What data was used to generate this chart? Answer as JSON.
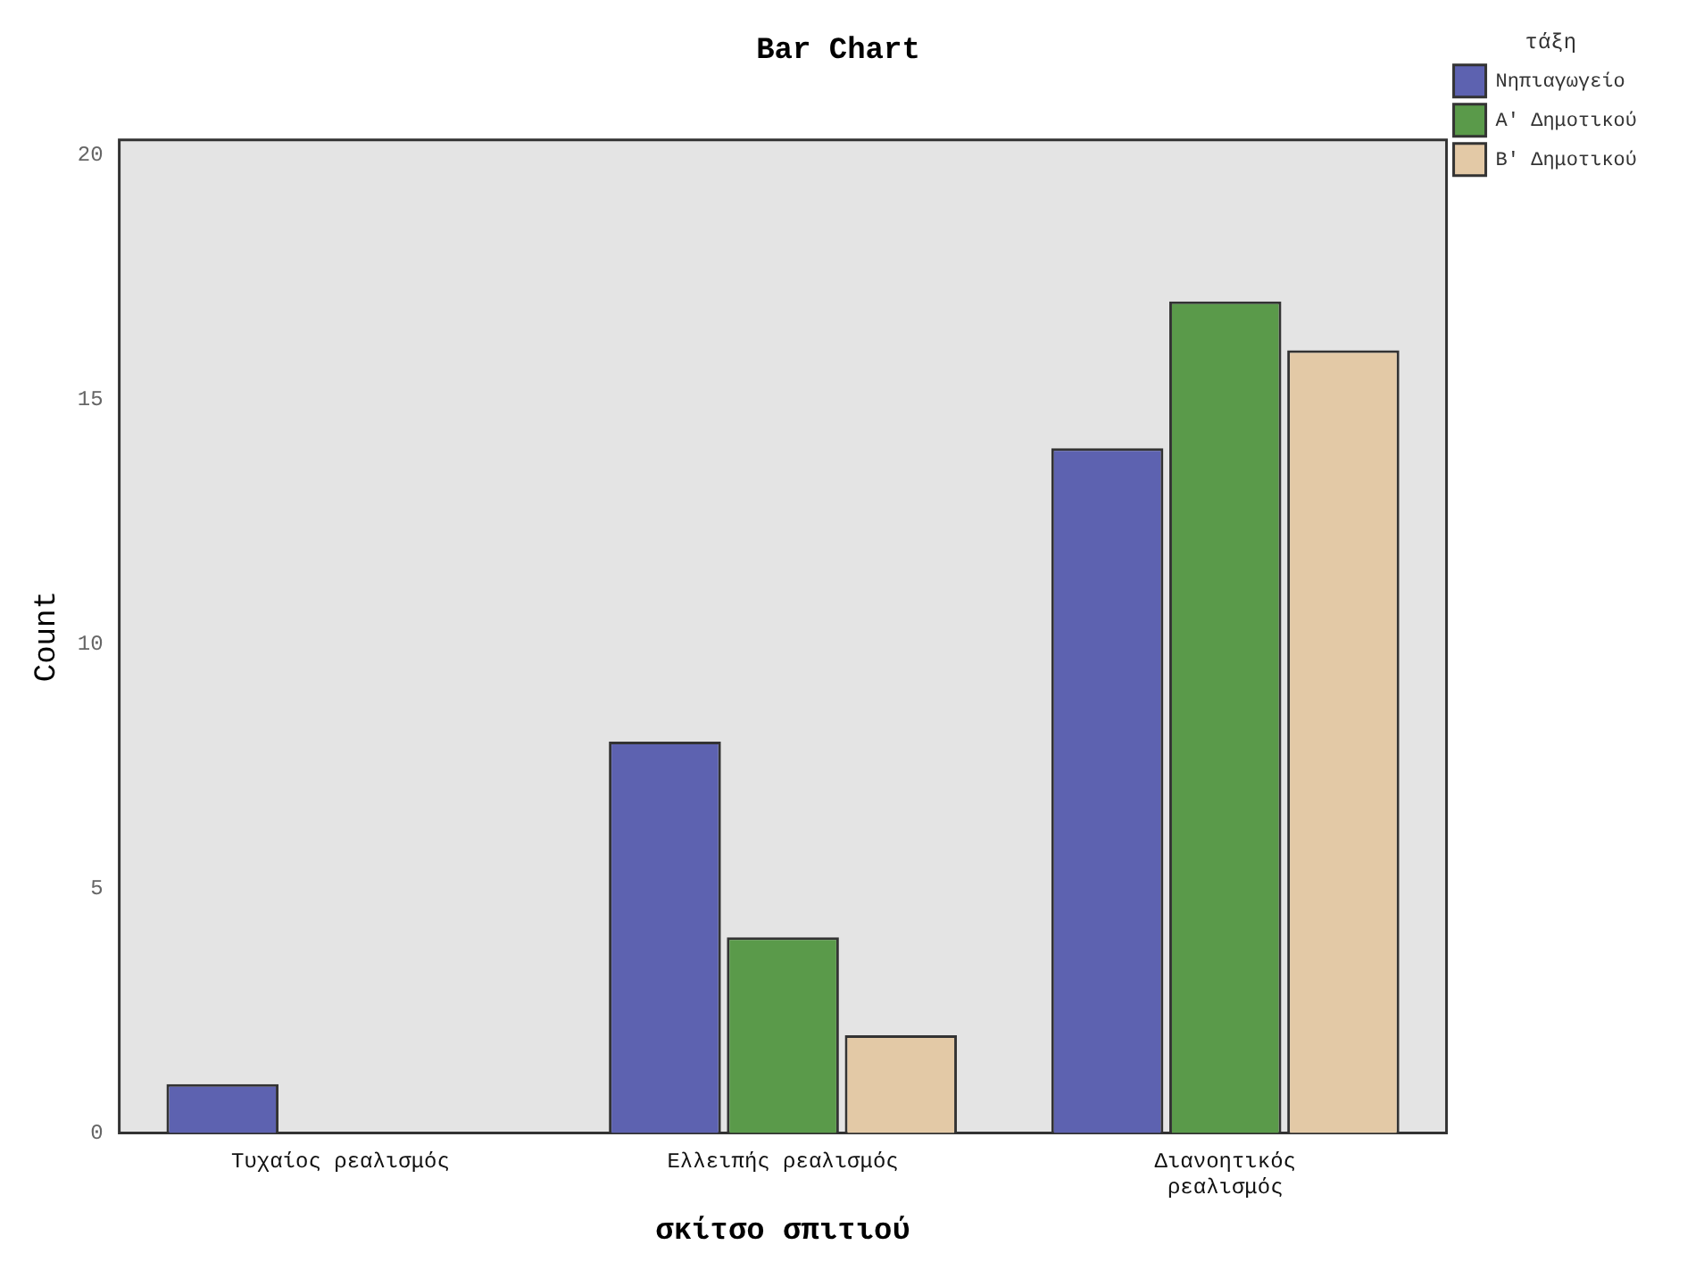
{
  "chart_data": {
    "type": "bar",
    "title": "Bar Chart",
    "xlabel": "σκίτσο σπιτιού",
    "ylabel": "Count",
    "legend_title": "τάξη",
    "categories": [
      "Τυχαίος ρεαλισμός",
      "Ελλειπής ρεαλισμός",
      "Διανοητικός ρεαλισμός"
    ],
    "series": [
      {
        "name": "Νηπιαγωγείο",
        "color": "#5d62b0",
        "values": [
          1,
          8,
          14
        ]
      },
      {
        "name": "Α' Δημοτικού",
        "color": "#5a9a4a",
        "values": [
          0,
          4,
          17
        ]
      },
      {
        "name": "Β' Δημοτικού",
        "color": "#e3c9a6",
        "values": [
          0,
          2,
          16
        ]
      }
    ],
    "ylim": [
      0,
      20.3
    ],
    "yticks": [
      0,
      5,
      10,
      15,
      20
    ],
    "grid": false,
    "legend": "top right"
  }
}
